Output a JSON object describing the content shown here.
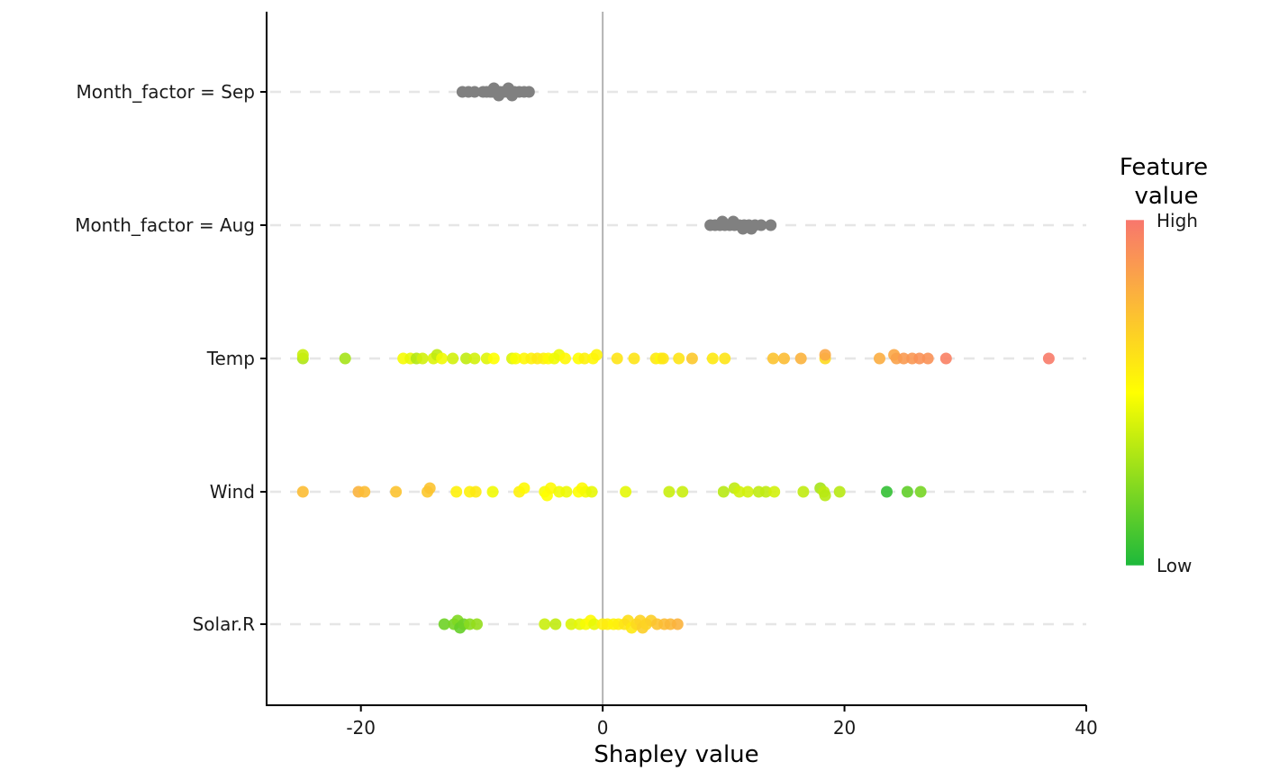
{
  "chart_data": {
    "type": "scatter",
    "subtype": "shap-beeswarm",
    "title": "",
    "xlabel": "Shapley value",
    "ylabel": "",
    "xlim": [
      -27.8,
      40
    ],
    "xticks": [
      -20,
      0,
      20,
      40
    ],
    "xtick_labels": [
      "-20",
      "0",
      "20",
      "40"
    ],
    "zero_line": 0,
    "grid": "dashed horizontal line per feature",
    "categories": [
      "Month_factor = Sep",
      "Month_factor = Aug",
      "Temp",
      "Wind",
      "Solar.R"
    ],
    "legend": {
      "title_lines": [
        "Feature",
        "value"
      ],
      "high_label": "High",
      "low_label": "Low",
      "placement": "right",
      "gradient": {
        "low": "#1DB93B",
        "mid": "#FFFF00",
        "high": "#F8766D"
      }
    },
    "neutral_color": "#808080",
    "series": [
      {
        "name": "Month_factor = Sep",
        "colored": false,
        "points": [
          {
            "x": -11.6
          },
          {
            "x": -11.1
          },
          {
            "x": -10.6
          },
          {
            "x": -9.9
          },
          {
            "x": -9.6
          },
          {
            "x": -9.3
          },
          {
            "x": -9.1
          },
          {
            "x": -8.8
          },
          {
            "x": -8.5
          },
          {
            "x": -8.2
          },
          {
            "x": -7.9
          },
          {
            "x": -7.6
          },
          {
            "x": -7.3
          },
          {
            "x": -6.9
          },
          {
            "x": -6.5
          },
          {
            "x": -6.1
          },
          {
            "x": -9.0,
            "jitter": -1
          },
          {
            "x": -7.8,
            "jitter": -1
          },
          {
            "x": -8.6,
            "jitter": 1
          },
          {
            "x": -7.5,
            "jitter": 1
          }
        ]
      },
      {
        "name": "Month_factor = Aug",
        "colored": false,
        "points": [
          {
            "x": 8.9
          },
          {
            "x": 9.3
          },
          {
            "x": 9.7
          },
          {
            "x": 10.1
          },
          {
            "x": 10.5
          },
          {
            "x": 10.9
          },
          {
            "x": 11.3
          },
          {
            "x": 11.7
          },
          {
            "x": 12.1
          },
          {
            "x": 12.6
          },
          {
            "x": 13.1
          },
          {
            "x": 13.9
          },
          {
            "x": 9.9,
            "jitter": -1
          },
          {
            "x": 10.8,
            "jitter": -1
          },
          {
            "x": 11.6,
            "jitter": 1
          },
          {
            "x": 12.3,
            "jitter": 1
          }
        ]
      },
      {
        "name": "Temp",
        "colored": true,
        "points": [
          {
            "x": -24.8,
            "c": 0.32
          },
          {
            "x": -24.8,
            "c": 0.38,
            "jitter": -1
          },
          {
            "x": -21.3,
            "c": 0.3
          },
          {
            "x": -16.5,
            "c": 0.48
          },
          {
            "x": -15.9,
            "c": 0.45
          },
          {
            "x": -15.4,
            "c": 0.33
          },
          {
            "x": -14.9,
            "c": 0.4
          },
          {
            "x": -14.0,
            "c": 0.42
          },
          {
            "x": -13.7,
            "c": 0.36,
            "jitter": -1
          },
          {
            "x": -13.3,
            "c": 0.47
          },
          {
            "x": -12.4,
            "c": 0.4
          },
          {
            "x": -11.3,
            "c": 0.36
          },
          {
            "x": -10.6,
            "c": 0.4
          },
          {
            "x": -9.6,
            "c": 0.43
          },
          {
            "x": -9.0,
            "c": 0.5
          },
          {
            "x": -7.5,
            "c": 0.42
          },
          {
            "x": -7.2,
            "c": 0.49
          },
          {
            "x": -6.5,
            "c": 0.53
          },
          {
            "x": -5.9,
            "c": 0.55
          },
          {
            "x": -5.4,
            "c": 0.58
          },
          {
            "x": -4.9,
            "c": 0.56
          },
          {
            "x": -4.5,
            "c": 0.52
          },
          {
            "x": -4.0,
            "c": 0.47
          },
          {
            "x": -3.6,
            "c": 0.46,
            "jitter": -1
          },
          {
            "x": -3.1,
            "c": 0.53
          },
          {
            "x": -2.0,
            "c": 0.5
          },
          {
            "x": -1.5,
            "c": 0.55
          },
          {
            "x": -0.8,
            "c": 0.53
          },
          {
            "x": -0.5,
            "c": 0.54,
            "jitter": -1
          },
          {
            "x": 1.2,
            "c": 0.6
          },
          {
            "x": 2.6,
            "c": 0.6
          },
          {
            "x": 4.4,
            "c": 0.58
          },
          {
            "x": 4.8,
            "c": 0.52
          },
          {
            "x": 5.0,
            "c": 0.6
          },
          {
            "x": 6.3,
            "c": 0.6
          },
          {
            "x": 7.4,
            "c": 0.7
          },
          {
            "x": 9.1,
            "c": 0.58
          },
          {
            "x": 10.1,
            "c": 0.6
          },
          {
            "x": 14.1,
            "c": 0.72
          },
          {
            "x": 15.0,
            "c": 0.74
          },
          {
            "x": 16.4,
            "c": 0.78
          },
          {
            "x": 18.4,
            "c": 0.64
          },
          {
            "x": 18.4,
            "c": 0.82,
            "jitter": -1
          },
          {
            "x": 22.9,
            "c": 0.8
          },
          {
            "x": 24.1,
            "c": 0.82,
            "jitter": -1
          },
          {
            "x": 24.3,
            "c": 0.84
          },
          {
            "x": 24.9,
            "c": 0.87
          },
          {
            "x": 25.6,
            "c": 0.88
          },
          {
            "x": 26.2,
            "c": 0.9
          },
          {
            "x": 26.9,
            "c": 0.9
          },
          {
            "x": 28.4,
            "c": 0.96
          },
          {
            "x": 36.9,
            "c": 0.98
          }
        ]
      },
      {
        "name": "Wind",
        "colored": true,
        "points": [
          {
            "x": -24.8,
            "c": 0.74
          },
          {
            "x": -20.2,
            "c": 0.78
          },
          {
            "x": -19.7,
            "c": 0.74
          },
          {
            "x": -17.1,
            "c": 0.72
          },
          {
            "x": -14.5,
            "c": 0.7
          },
          {
            "x": -14.3,
            "c": 0.72,
            "jitter": -1
          },
          {
            "x": -12.1,
            "c": 0.55
          },
          {
            "x": -11.0,
            "c": 0.55
          },
          {
            "x": -10.5,
            "c": 0.58
          },
          {
            "x": -9.1,
            "c": 0.47
          },
          {
            "x": -6.9,
            "c": 0.55
          },
          {
            "x": -6.5,
            "c": 0.52,
            "jitter": -1
          },
          {
            "x": -4.8,
            "c": 0.48
          },
          {
            "x": -4.6,
            "c": 0.5,
            "jitter": 1
          },
          {
            "x": -4.3,
            "c": 0.52,
            "jitter": -1
          },
          {
            "x": -3.6,
            "c": 0.47
          },
          {
            "x": -3.0,
            "c": 0.46
          },
          {
            "x": -2.0,
            "c": 0.5
          },
          {
            "x": -1.7,
            "c": 0.52,
            "jitter": -1
          },
          {
            "x": -1.4,
            "c": 0.48
          },
          {
            "x": -0.9,
            "c": 0.45
          },
          {
            "x": 1.9,
            "c": 0.44
          },
          {
            "x": 5.5,
            "c": 0.38
          },
          {
            "x": 6.6,
            "c": 0.38
          },
          {
            "x": 10.0,
            "c": 0.34
          },
          {
            "x": 10.9,
            "c": 0.36,
            "jitter": -1
          },
          {
            "x": 11.3,
            "c": 0.4
          },
          {
            "x": 12.0,
            "c": 0.4
          },
          {
            "x": 12.9,
            "c": 0.36
          },
          {
            "x": 13.5,
            "c": 0.36
          },
          {
            "x": 14.2,
            "c": 0.4
          },
          {
            "x": 16.6,
            "c": 0.36
          },
          {
            "x": 18.0,
            "c": 0.3,
            "jitter": -1
          },
          {
            "x": 18.3,
            "c": 0.36
          },
          {
            "x": 18.4,
            "c": 0.34,
            "jitter": 1
          },
          {
            "x": 19.6,
            "c": 0.34
          },
          {
            "x": 23.5,
            "c": 0.05
          },
          {
            "x": 25.2,
            "c": 0.15
          },
          {
            "x": 26.3,
            "c": 0.2
          }
        ]
      },
      {
        "name": "Solar.R",
        "colored": true,
        "points": [
          {
            "x": -13.1,
            "c": 0.18
          },
          {
            "x": -12.3,
            "c": 0.2
          },
          {
            "x": -12.0,
            "c": 0.22,
            "jitter": -1
          },
          {
            "x": -11.8,
            "c": 0.16,
            "jitter": 1
          },
          {
            "x": -11.5,
            "c": 0.18
          },
          {
            "x": -11.0,
            "c": 0.24
          },
          {
            "x": -10.4,
            "c": 0.26
          },
          {
            "x": -4.8,
            "c": 0.38
          },
          {
            "x": -3.9,
            "c": 0.36
          },
          {
            "x": -2.6,
            "c": 0.42
          },
          {
            "x": -1.9,
            "c": 0.44
          },
          {
            "x": -1.4,
            "c": 0.48
          },
          {
            "x": -1.0,
            "c": 0.52,
            "jitter": -1
          },
          {
            "x": -0.7,
            "c": 0.45
          },
          {
            "x": 0.0,
            "c": 0.55
          },
          {
            "x": 0.4,
            "c": 0.57
          },
          {
            "x": 0.9,
            "c": 0.54
          },
          {
            "x": 1.3,
            "c": 0.56
          },
          {
            "x": 1.8,
            "c": 0.6
          },
          {
            "x": 2.1,
            "c": 0.62,
            "jitter": -1
          },
          {
            "x": 2.4,
            "c": 0.58,
            "jitter": 1
          },
          {
            "x": 2.8,
            "c": 0.64
          },
          {
            "x": 3.1,
            "c": 0.66,
            "jitter": -1
          },
          {
            "x": 3.3,
            "c": 0.68,
            "jitter": 1
          },
          {
            "x": 3.6,
            "c": 0.66
          },
          {
            "x": 4.0,
            "c": 0.68,
            "jitter": -1
          },
          {
            "x": 4.5,
            "c": 0.72
          },
          {
            "x": 5.1,
            "c": 0.74
          },
          {
            "x": 5.6,
            "c": 0.76
          },
          {
            "x": 6.2,
            "c": 0.78
          }
        ]
      }
    ]
  }
}
